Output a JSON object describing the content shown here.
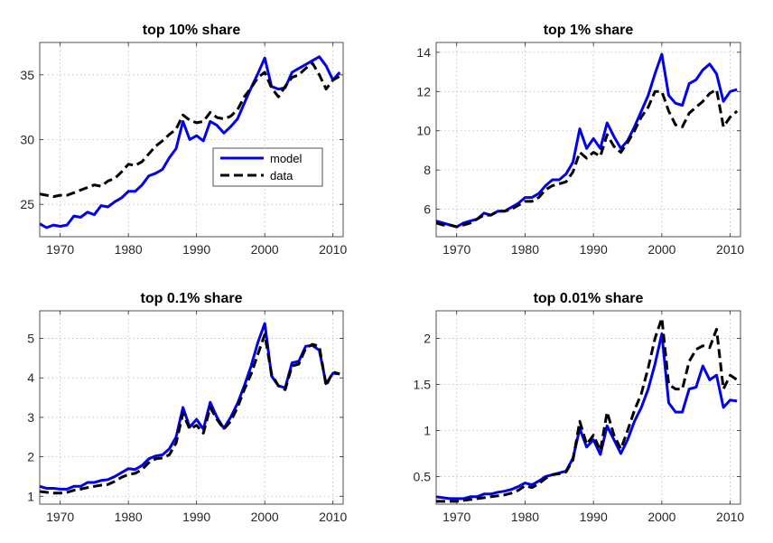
{
  "chart_data": [
    {
      "type": "line",
      "title": "top 10% share",
      "xlim": [
        1967,
        2011.5
      ],
      "ylim": [
        22.5,
        37.5
      ],
      "xticks": [
        1970,
        1980,
        1990,
        2000,
        2010
      ],
      "xticklabels": [
        "1970",
        "1980",
        "1990",
        "2000",
        "2010"
      ],
      "yticks": [
        25,
        30,
        35
      ],
      "yticklabels": [
        "25",
        "30",
        "35"
      ],
      "grid": true,
      "legend": {
        "position": "center-right",
        "entries": [
          "model",
          "data"
        ]
      },
      "series": [
        {
          "name": "model",
          "color": "#0000ee",
          "style": "solid",
          "x": [
            1967,
            1968,
            1969,
            1970,
            1971,
            1972,
            1973,
            1974,
            1975,
            1976,
            1977,
            1978,
            1979,
            1980,
            1981,
            1982,
            1983,
            1984,
            1985,
            1986,
            1987,
            1988,
            1989,
            1990,
            1991,
            1992,
            1993,
            1994,
            1995,
            1996,
            1997,
            1998,
            1999,
            2000,
            2001,
            2002,
            2003,
            2004,
            2005,
            2006,
            2007,
            2008,
            2009,
            2010,
            2011
          ],
          "y": [
            23.5,
            23.2,
            23.4,
            23.3,
            23.4,
            24.1,
            24.0,
            24.4,
            24.2,
            24.9,
            24.8,
            25.2,
            25.5,
            26.0,
            26.0,
            26.5,
            27.2,
            27.4,
            27.7,
            28.6,
            29.3,
            31.4,
            30.0,
            30.3,
            29.9,
            31.4,
            31.1,
            30.5,
            31.0,
            31.6,
            32.8,
            34.0,
            35.1,
            36.3,
            34.1,
            33.9,
            34.0,
            35.2,
            35.5,
            35.8,
            36.1,
            36.4,
            35.7,
            34.6,
            35.2
          ]
        },
        {
          "name": "data",
          "color": "#000000",
          "style": "dashed",
          "x": [
            1967,
            1968,
            1969,
            1970,
            1971,
            1972,
            1973,
            1974,
            1975,
            1976,
            1977,
            1978,
            1979,
            1980,
            1981,
            1982,
            1983,
            1984,
            1985,
            1986,
            1987,
            1988,
            1989,
            1990,
            1991,
            1992,
            1993,
            1994,
            1995,
            1996,
            1997,
            1998,
            1999,
            2000,
            2001,
            2002,
            2003,
            2004,
            2005,
            2006,
            2007,
            2008,
            2009,
            2010,
            2011
          ],
          "y": [
            25.8,
            25.7,
            25.6,
            25.7,
            25.7,
            25.9,
            26.1,
            26.3,
            26.5,
            26.4,
            26.8,
            27.0,
            27.5,
            28.1,
            28.0,
            28.3,
            28.9,
            29.5,
            29.9,
            30.4,
            30.8,
            31.9,
            31.5,
            31.3,
            31.4,
            32.1,
            31.7,
            31.6,
            31.8,
            32.3,
            33.3,
            34.0,
            34.8,
            35.2,
            34.0,
            33.3,
            34.1,
            34.8,
            35.0,
            35.5,
            35.9,
            35.0,
            33.9,
            34.6,
            34.9
          ]
        }
      ]
    },
    {
      "type": "line",
      "title": "top 1% share",
      "xlim": [
        1967,
        2011.5
      ],
      "ylim": [
        4.6,
        14.5
      ],
      "xticks": [
        1970,
        1980,
        1990,
        2000,
        2010
      ],
      "xticklabels": [
        "1970",
        "1980",
        "1990",
        "2000",
        "2010"
      ],
      "yticks": [
        6,
        8,
        10,
        12,
        14
      ],
      "yticklabels": [
        "6",
        "8",
        "10",
        "12",
        "14"
      ],
      "grid": true,
      "series": [
        {
          "name": "model",
          "color": "#0000ee",
          "style": "solid",
          "x": [
            1967,
            1968,
            1969,
            1970,
            1971,
            1972,
            1973,
            1974,
            1975,
            1976,
            1977,
            1978,
            1979,
            1980,
            1981,
            1982,
            1983,
            1984,
            1985,
            1986,
            1987,
            1988,
            1989,
            1990,
            1991,
            1992,
            1993,
            1994,
            1995,
            1996,
            1997,
            1998,
            1999,
            2000,
            2001,
            2002,
            2003,
            2004,
            2005,
            2006,
            2007,
            2008,
            2009,
            2010,
            2011
          ],
          "y": [
            5.4,
            5.3,
            5.2,
            5.1,
            5.3,
            5.4,
            5.5,
            5.8,
            5.7,
            5.9,
            5.9,
            6.1,
            6.3,
            6.6,
            6.6,
            6.8,
            7.2,
            7.5,
            7.5,
            7.8,
            8.4,
            10.1,
            9.1,
            9.6,
            9.1,
            10.4,
            9.7,
            9.1,
            9.5,
            10.2,
            11.0,
            11.8,
            12.9,
            13.9,
            11.8,
            11.4,
            11.3,
            12.4,
            12.6,
            13.1,
            13.4,
            12.9,
            11.5,
            12.0,
            12.1
          ]
        },
        {
          "name": "data",
          "color": "#000000",
          "style": "dashed",
          "x": [
            1967,
            1968,
            1969,
            1970,
            1971,
            1972,
            1973,
            1974,
            1975,
            1976,
            1977,
            1978,
            1979,
            1980,
            1981,
            1982,
            1983,
            1984,
            1985,
            1986,
            1987,
            1988,
            1989,
            1990,
            1991,
            1992,
            1993,
            1994,
            1995,
            1996,
            1997,
            1998,
            1999,
            2000,
            2001,
            2002,
            2003,
            2004,
            2005,
            2006,
            2007,
            2008,
            2009,
            2010,
            2011
          ],
          "y": [
            5.3,
            5.2,
            5.2,
            5.1,
            5.2,
            5.3,
            5.5,
            5.7,
            5.7,
            5.9,
            5.9,
            6.0,
            6.2,
            6.4,
            6.4,
            6.6,
            7.0,
            7.2,
            7.3,
            7.4,
            7.9,
            8.9,
            8.6,
            8.9,
            8.7,
            9.8,
            9.2,
            8.9,
            9.4,
            10.0,
            10.7,
            11.2,
            12.0,
            12.0,
            11.0,
            10.3,
            10.2,
            10.9,
            11.2,
            11.5,
            11.9,
            12.1,
            10.2,
            10.7,
            11.0
          ]
        }
      ]
    },
    {
      "type": "line",
      "title": "top 0.1% share",
      "xlim": [
        1967,
        2011.5
      ],
      "ylim": [
        0.8,
        5.7
      ],
      "xticks": [
        1970,
        1980,
        1990,
        2000,
        2010
      ],
      "xticklabels": [
        "1970",
        "1980",
        "1990",
        "2000",
        "2010"
      ],
      "yticks": [
        1,
        2,
        3,
        4,
        5
      ],
      "yticklabels": [
        "1",
        "2",
        "3",
        "4",
        "5"
      ],
      "grid": true,
      "series": [
        {
          "name": "model",
          "color": "#0000ee",
          "style": "solid",
          "x": [
            1967,
            1968,
            1969,
            1970,
            1971,
            1972,
            1973,
            1974,
            1975,
            1976,
            1977,
            1978,
            1979,
            1980,
            1981,
            1982,
            1983,
            1984,
            1985,
            1986,
            1987,
            1988,
            1989,
            1990,
            1991,
            1992,
            1993,
            1994,
            1995,
            1996,
            1997,
            1998,
            1999,
            2000,
            2001,
            2002,
            2003,
            2004,
            2005,
            2006,
            2007,
            2008,
            2009,
            2010,
            2011
          ],
          "y": [
            1.25,
            1.2,
            1.2,
            1.18,
            1.18,
            1.25,
            1.25,
            1.35,
            1.35,
            1.4,
            1.42,
            1.5,
            1.6,
            1.7,
            1.68,
            1.78,
            1.95,
            2.02,
            2.05,
            2.2,
            2.5,
            3.25,
            2.75,
            2.95,
            2.7,
            3.38,
            3.0,
            2.72,
            3.0,
            3.35,
            3.8,
            4.3,
            4.9,
            5.38,
            4.05,
            3.8,
            3.75,
            4.38,
            4.42,
            4.8,
            4.82,
            4.7,
            3.85,
            4.12,
            4.1
          ]
        },
        {
          "name": "data",
          "color": "#000000",
          "style": "dashed",
          "x": [
            1967,
            1968,
            1969,
            1970,
            1971,
            1972,
            1973,
            1974,
            1975,
            1976,
            1977,
            1978,
            1979,
            1980,
            1981,
            1982,
            1983,
            1984,
            1985,
            1986,
            1987,
            1988,
            1989,
            1990,
            1991,
            1992,
            1993,
            1994,
            1995,
            1996,
            1997,
            1998,
            1999,
            2000,
            2001,
            2002,
            2003,
            2004,
            2005,
            2006,
            2007,
            2008,
            2009,
            2010,
            2011
          ],
          "y": [
            1.12,
            1.1,
            1.08,
            1.08,
            1.1,
            1.15,
            1.18,
            1.22,
            1.25,
            1.28,
            1.3,
            1.38,
            1.48,
            1.55,
            1.58,
            1.68,
            1.85,
            1.95,
            1.97,
            2.05,
            2.35,
            3.1,
            2.7,
            2.8,
            2.6,
            3.25,
            2.95,
            2.7,
            2.9,
            3.25,
            3.7,
            4.1,
            4.6,
            5.1,
            4.1,
            3.8,
            3.7,
            4.3,
            4.35,
            4.75,
            4.85,
            4.8,
            3.8,
            4.15,
            4.1
          ]
        }
      ]
    },
    {
      "type": "line",
      "title": "top 0.01% share",
      "xlim": [
        1967,
        2011.5
      ],
      "ylim": [
        0.2,
        2.3
      ],
      "xticks": [
        1970,
        1980,
        1990,
        2000,
        2010
      ],
      "xticklabels": [
        "1970",
        "1980",
        "1990",
        "2000",
        "2010"
      ],
      "yticks": [
        0.5,
        1,
        1.5,
        2
      ],
      "yticklabels": [
        "0.5",
        "1",
        "1.5",
        "2"
      ],
      "grid": true,
      "series": [
        {
          "name": "model",
          "color": "#0000ee",
          "style": "solid",
          "x": [
            1967,
            1968,
            1969,
            1970,
            1971,
            1972,
            1973,
            1974,
            1975,
            1976,
            1977,
            1978,
            1979,
            1980,
            1981,
            1982,
            1983,
            1984,
            1985,
            1986,
            1987,
            1988,
            1989,
            1990,
            1991,
            1992,
            1993,
            1994,
            1995,
            1996,
            1997,
            1998,
            1999,
            2000,
            2001,
            2002,
            2003,
            2004,
            2005,
            2006,
            2007,
            2008,
            2009,
            2010,
            2011
          ],
          "y": [
            0.28,
            0.27,
            0.26,
            0.26,
            0.26,
            0.28,
            0.28,
            0.31,
            0.31,
            0.33,
            0.34,
            0.36,
            0.39,
            0.43,
            0.41,
            0.45,
            0.5,
            0.52,
            0.54,
            0.56,
            0.7,
            1.02,
            0.82,
            0.9,
            0.74,
            1.05,
            0.9,
            0.75,
            0.9,
            1.1,
            1.25,
            1.45,
            1.72,
            2.05,
            1.3,
            1.2,
            1.2,
            1.45,
            1.47,
            1.7,
            1.55,
            1.6,
            1.25,
            1.33,
            1.32
          ]
        },
        {
          "name": "data",
          "color": "#000000",
          "style": "dashed",
          "x": [
            1967,
            1968,
            1969,
            1970,
            1971,
            1972,
            1973,
            1974,
            1975,
            1976,
            1977,
            1978,
            1979,
            1980,
            1981,
            1982,
            1983,
            1984,
            1985,
            1986,
            1987,
            1988,
            1989,
            1990,
            1991,
            1992,
            1993,
            1994,
            1995,
            1996,
            1997,
            1998,
            1999,
            2000,
            2001,
            2002,
            2003,
            2004,
            2005,
            2006,
            2007,
            2008,
            2009,
            2010,
            2011
          ],
          "y": [
            0.23,
            0.23,
            0.23,
            0.23,
            0.24,
            0.25,
            0.26,
            0.27,
            0.28,
            0.29,
            0.3,
            0.32,
            0.35,
            0.4,
            0.38,
            0.42,
            0.48,
            0.52,
            0.53,
            0.55,
            0.68,
            1.1,
            0.85,
            0.95,
            0.78,
            1.2,
            0.95,
            0.8,
            1.0,
            1.22,
            1.4,
            1.68,
            2.0,
            2.22,
            1.5,
            1.45,
            1.45,
            1.75,
            1.88,
            1.92,
            1.9,
            2.1,
            1.45,
            1.6,
            1.55
          ]
        }
      ]
    }
  ]
}
